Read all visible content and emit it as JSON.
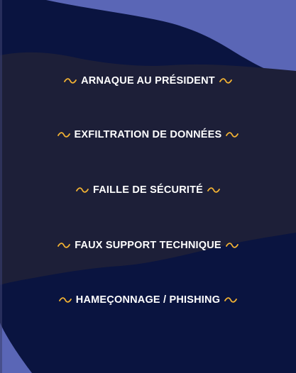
{
  "colors": {
    "page_background": "#0f173a",
    "outer_wave": "#5a66b6",
    "mid_wave": "#0a1440",
    "panel": "#1d1f38",
    "text": "#ffffff",
    "accent": "#f2b233"
  },
  "icon": "wave-squiggle-icon",
  "threats": [
    {
      "label": "ARNAQUE AU PRÉSIDENT"
    },
    {
      "label": "EXFILTRATION DE DONNÉES"
    },
    {
      "label": "FAILLE DE SÉCURITÉ"
    },
    {
      "label": "FAUX SUPPORT TECHNIQUE"
    },
    {
      "label": "HAMEÇONNAGE / PHISHING"
    }
  ]
}
